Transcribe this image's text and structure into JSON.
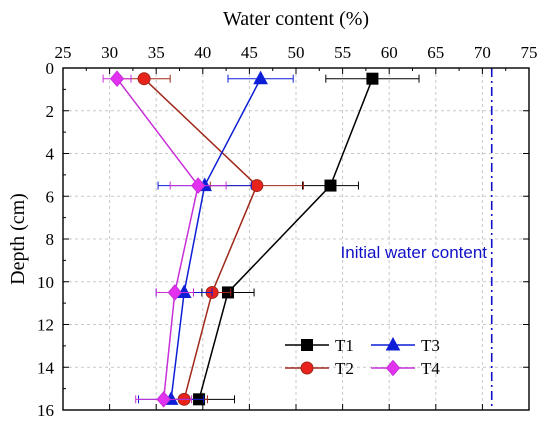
{
  "chart_data": {
    "type": "line",
    "orientation": "depth-profile (x on top axis, y inverted)",
    "xlabel": "Water content (%)",
    "ylabel": "Depth (cm)",
    "xlim": [
      25,
      75
    ],
    "ylim": [
      0,
      16
    ],
    "x_ticks": [
      "25",
      "30",
      "35",
      "40",
      "45",
      "50",
      "55",
      "60",
      "65",
      "70",
      "75"
    ],
    "y_ticks": [
      "0",
      "2",
      "4",
      "6",
      "8",
      "10",
      "12",
      "14",
      "16"
    ],
    "grid": true,
    "legend_placement": "bottom-right",
    "series": [
      {
        "name": "T1",
        "color": "#000000",
        "marker": "square",
        "points": [
          {
            "x": 58.2,
            "y": 0.5,
            "xerr": 5.0
          },
          {
            "x": 53.7,
            "y": 5.5,
            "xerr": 3.0
          },
          {
            "x": 42.7,
            "y": 10.5,
            "xerr": 2.8
          },
          {
            "x": 39.6,
            "y": 15.5,
            "xerr": 3.8
          }
        ]
      },
      {
        "name": "T2",
        "color": "#a0281b",
        "marker_fill": "#e8231c",
        "marker": "circle",
        "points": [
          {
            "x": 33.7,
            "y": 0.5,
            "xerr": 2.8
          },
          {
            "x": 45.8,
            "y": 5.5,
            "xerr": 5.0
          },
          {
            "x": 41.0,
            "y": 10.5,
            "xerr": 2.0
          },
          {
            "x": 38.0,
            "y": 15.5,
            "xerr": 2.5
          }
        ]
      },
      {
        "name": "T3",
        "color": "#0d1fd6",
        "marker": "triangle",
        "points": [
          {
            "x": 46.2,
            "y": 0.5,
            "xerr": 3.5
          },
          {
            "x": 40.2,
            "y": 5.5,
            "xerr": 5.0
          },
          {
            "x": 38.0,
            "y": 10.5,
            "xerr": 3.0
          },
          {
            "x": 36.6,
            "y": 15.5,
            "xerr": 3.5
          }
        ]
      },
      {
        "name": "T4",
        "color": "#c830d8",
        "marker_fill": "#e232f0",
        "marker": "diamond",
        "points": [
          {
            "x": 30.8,
            "y": 0.5,
            "xerr": 1.5
          },
          {
            "x": 39.5,
            "y": 5.5,
            "xerr": 3.0
          },
          {
            "x": 37.0,
            "y": 10.5,
            "xerr": 2.0
          },
          {
            "x": 35.8,
            "y": 15.5,
            "xerr": 3.0
          }
        ]
      }
    ],
    "reference_line": {
      "x": 71.0,
      "label": "Initial water content",
      "color": "#1010c8"
    }
  }
}
